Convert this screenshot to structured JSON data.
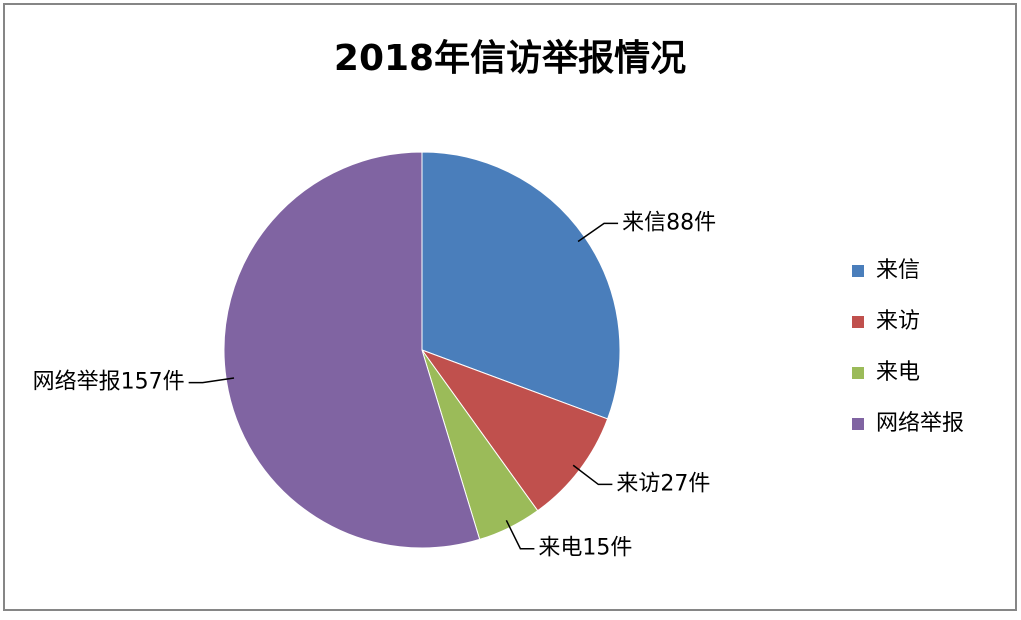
{
  "chart_data": {
    "type": "pie",
    "title": "2018年信访举报情况",
    "categories": [
      "来信",
      "来访",
      "来电",
      "网络举报"
    ],
    "values": [
      88,
      27,
      15,
      157
    ],
    "value_labels": [
      "来信88件",
      "来访27件",
      "来电15件",
      "网络举报157件"
    ],
    "colors": [
      "#4a7ebb",
      "#c0504d",
      "#9bbb59",
      "#8064a2"
    ],
    "legend": "right"
  }
}
